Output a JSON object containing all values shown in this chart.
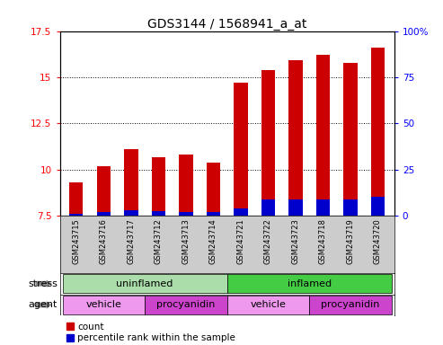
{
  "title": "GDS3144 / 1568941_a_at",
  "samples": [
    "GSM243715",
    "GSM243716",
    "GSM243717",
    "GSM243712",
    "GSM243713",
    "GSM243714",
    "GSM243721",
    "GSM243722",
    "GSM243723",
    "GSM243718",
    "GSM243719",
    "GSM243720"
  ],
  "count_values": [
    9.3,
    10.2,
    11.1,
    10.7,
    10.8,
    10.4,
    14.7,
    15.4,
    15.9,
    16.2,
    15.8,
    16.6
  ],
  "percentile_values": [
    7.6,
    7.7,
    7.8,
    7.75,
    7.72,
    7.73,
    7.9,
    8.4,
    8.4,
    8.4,
    8.4,
    8.55
  ],
  "ymin": 7.5,
  "ymax": 17.5,
  "yticks": [
    7.5,
    10.0,
    12.5,
    15.0,
    17.5
  ],
  "ytick_labels": [
    "7.5",
    "10",
    "12.5",
    "15",
    "17.5"
  ],
  "y2ticks": [
    0,
    25,
    50,
    75,
    100
  ],
  "y2tick_labels": [
    "0",
    "25",
    "50",
    "75",
    "100%"
  ],
  "bar_color": "#cc0000",
  "percentile_color": "#0000cc",
  "stress_uninflamed_color": "#aaddaa",
  "stress_inflamed_color": "#44cc44",
  "agent_vehicle_color": "#ee99ee",
  "agent_procyanidin_color": "#cc44cc",
  "stress_groups": [
    {
      "label": "uninflamed",
      "start": 0,
      "end": 6
    },
    {
      "label": "inflamed",
      "start": 6,
      "end": 12
    }
  ],
  "agent_groups": [
    {
      "label": "vehicle",
      "start": 0,
      "end": 3
    },
    {
      "label": "procyanidin",
      "start": 3,
      "end": 6
    },
    {
      "label": "vehicle",
      "start": 6,
      "end": 9
    },
    {
      "label": "procyanidin",
      "start": 9,
      "end": 12
    }
  ],
  "legend_count_label": "count",
  "legend_pct_label": "percentile rank within the sample",
  "bar_width": 0.5,
  "title_fontsize": 10,
  "tick_fontsize": 7.5,
  "sample_fontsize": 6.0,
  "row_label_fontsize": 8,
  "group_fontsize": 8
}
